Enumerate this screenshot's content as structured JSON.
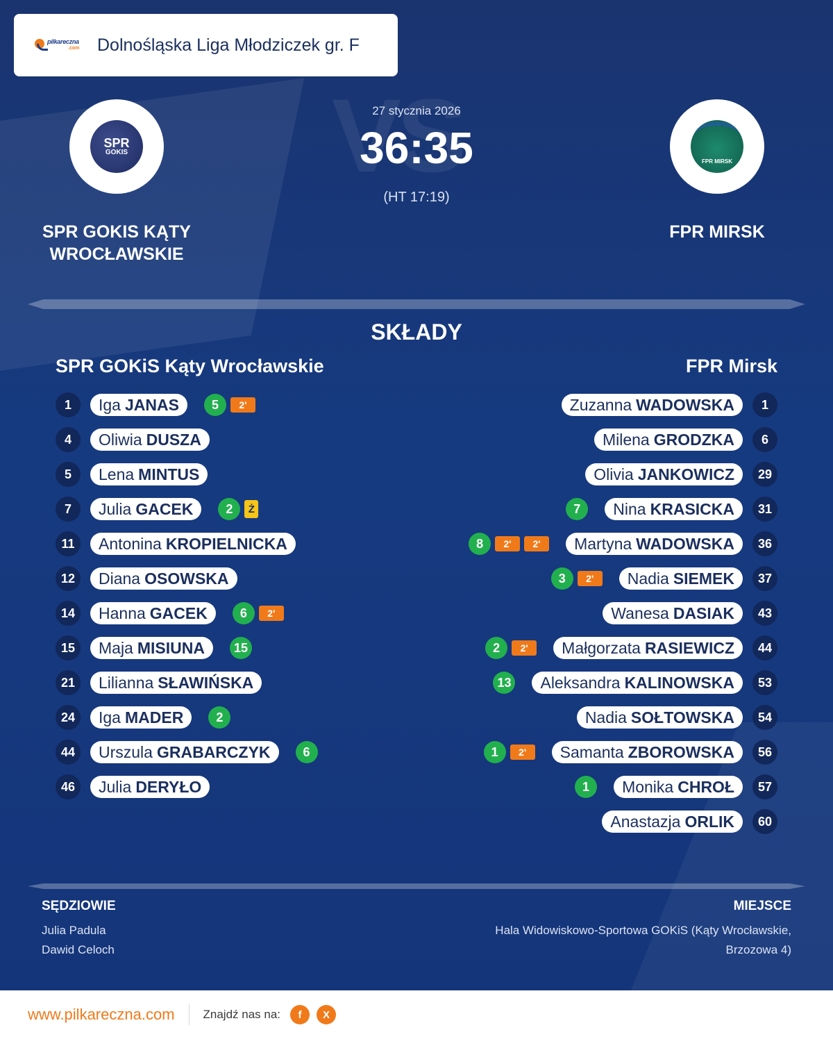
{
  "header": {
    "logo_text": "pilkareczna",
    "logo_suffix": ".com",
    "league": "Dolnośląska Liga Młodziczek gr. F"
  },
  "match": {
    "date": "27 stycznia 2026",
    "score": "36:35",
    "halftime": "(HT 17:19)",
    "watermark": "VS"
  },
  "home": {
    "name": "SPR GOKIS KĄTY WROCŁAWSKIE",
    "crest_line1": "SPR",
    "crest_line2": "GOKIS",
    "roster_title": "SPR GOKiS Kąty Wrocławskie",
    "players": [
      {
        "num": "1",
        "first": "Iga",
        "last": "JANAS",
        "goals": "5",
        "susp": [
          "2'"
        ],
        "yellow": ""
      },
      {
        "num": "4",
        "first": "Oliwia",
        "last": "DUSZA",
        "goals": "",
        "susp": [],
        "yellow": ""
      },
      {
        "num": "5",
        "first": "Lena",
        "last": "MINTUS",
        "goals": "",
        "susp": [],
        "yellow": ""
      },
      {
        "num": "7",
        "first": "Julia",
        "last": "GACEK",
        "goals": "2",
        "susp": [],
        "yellow": "Ż"
      },
      {
        "num": "11",
        "first": "Antonina",
        "last": "KROPIELNICKA",
        "goals": "",
        "susp": [],
        "yellow": ""
      },
      {
        "num": "12",
        "first": "Diana",
        "last": "OSOWSKA",
        "goals": "",
        "susp": [],
        "yellow": ""
      },
      {
        "num": "14",
        "first": "Hanna",
        "last": "GACEK",
        "goals": "6",
        "susp": [
          "2'"
        ],
        "yellow": ""
      },
      {
        "num": "15",
        "first": "Maja",
        "last": "MISIUNA",
        "goals": "15",
        "susp": [],
        "yellow": ""
      },
      {
        "num": "21",
        "first": "Lilianna",
        "last": "SŁAWIŃSKA",
        "goals": "",
        "susp": [],
        "yellow": ""
      },
      {
        "num": "24",
        "first": "Iga",
        "last": "MADER",
        "goals": "2",
        "susp": [],
        "yellow": ""
      },
      {
        "num": "44",
        "first": "Urszula",
        "last": "GRABARCZYK",
        "goals": "6",
        "susp": [],
        "yellow": ""
      },
      {
        "num": "46",
        "first": "Julia",
        "last": "DERYŁO",
        "goals": "",
        "susp": [],
        "yellow": ""
      }
    ]
  },
  "away": {
    "name": "FPR MIRSK",
    "crest_text": "FPR MIRSK",
    "roster_title": "FPR Mirsk",
    "players": [
      {
        "num": "1",
        "first": "Zuzanna",
        "last": "WADOWSKA",
        "goals": "",
        "susp": []
      },
      {
        "num": "6",
        "first": "Milena",
        "last": "GRODZKA",
        "goals": "",
        "susp": []
      },
      {
        "num": "29",
        "first": "Olivia",
        "last": "JANKOWICZ",
        "goals": "",
        "susp": []
      },
      {
        "num": "31",
        "first": "Nina",
        "last": "KRASICKA",
        "goals": "7",
        "susp": []
      },
      {
        "num": "36",
        "first": "Martyna",
        "last": "WADOWSKA",
        "goals": "8",
        "susp": [
          "2'",
          "2'"
        ]
      },
      {
        "num": "37",
        "first": "Nadia",
        "last": "SIEMEK",
        "goals": "3",
        "susp": [
          "2'"
        ]
      },
      {
        "num": "43",
        "first": "Wanesa",
        "last": "DASIAK",
        "goals": "",
        "susp": []
      },
      {
        "num": "44",
        "first": "Małgorzata",
        "last": "RASIEWICZ",
        "goals": "2",
        "susp": [
          "2'"
        ]
      },
      {
        "num": "53",
        "first": "Aleksandra",
        "last": "KALINOWSKA",
        "goals": "13",
        "susp": []
      },
      {
        "num": "54",
        "first": "Nadia",
        "last": "SOŁTOWSKA",
        "goals": "",
        "susp": []
      },
      {
        "num": "56",
        "first": "Samanta",
        "last": "ZBOROWSKA",
        "goals": "1",
        "susp": [
          "2'"
        ]
      },
      {
        "num": "57",
        "first": "Monika",
        "last": "CHROŁ",
        "goals": "1",
        "susp": []
      },
      {
        "num": "60",
        "first": "Anastazja",
        "last": "ORLIK",
        "goals": "",
        "susp": []
      }
    ]
  },
  "section_title": "SKŁADY",
  "officials": {
    "label": "SĘDZIOWIE",
    "line1": "Julia Padula",
    "line2": "Dawid Celoch"
  },
  "venue": {
    "label": "MIEJSCE",
    "line1": "Hala Widowiskowo-Sportowa GOKiS (Kąty Wrocławskie,",
    "line2": "Brzozowa 4)"
  },
  "footer": {
    "site": "www.pilkareczna.com",
    "find_us": "Znajdź nas na:",
    "facebook": "f",
    "x": "X"
  },
  "colors": {
    "accent": "#f07a1a",
    "goal": "#22b04f",
    "yellow_card": "#f5c518",
    "navy": "#1b2f5e"
  }
}
